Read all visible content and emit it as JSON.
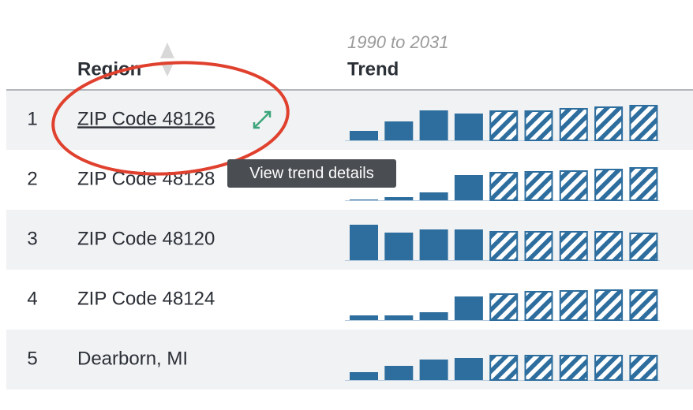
{
  "header": {
    "region": "Region",
    "trend_range": "1990 to 2031",
    "trend": "Trend"
  },
  "rows": [
    {
      "rank": 1,
      "region": "ZIP Code 48126",
      "history": [
        12,
        24,
        38,
        34
      ],
      "projection": [
        38,
        38,
        41,
        43,
        45
      ]
    },
    {
      "rank": 2,
      "region": "ZIP Code 48128",
      "history": [
        1,
        4,
        10,
        32
      ],
      "projection": [
        36,
        37,
        38,
        40,
        42
      ]
    },
    {
      "rank": 3,
      "region": "ZIP Code 48120",
      "history": [
        45,
        35,
        39,
        39
      ],
      "projection": [
        37,
        37,
        37,
        37,
        35
      ]
    },
    {
      "rank": 4,
      "region": "ZIP Code 48124",
      "history": [
        6,
        6,
        10,
        30
      ],
      "projection": [
        34,
        37,
        38,
        39,
        39
      ]
    },
    {
      "rank": 5,
      "region": "Dearborn, MI",
      "history": [
        10,
        18,
        26,
        28
      ],
      "projection": [
        32,
        32,
        32,
        32,
        32
      ]
    }
  ],
  "tooltip": "View trend details"
}
